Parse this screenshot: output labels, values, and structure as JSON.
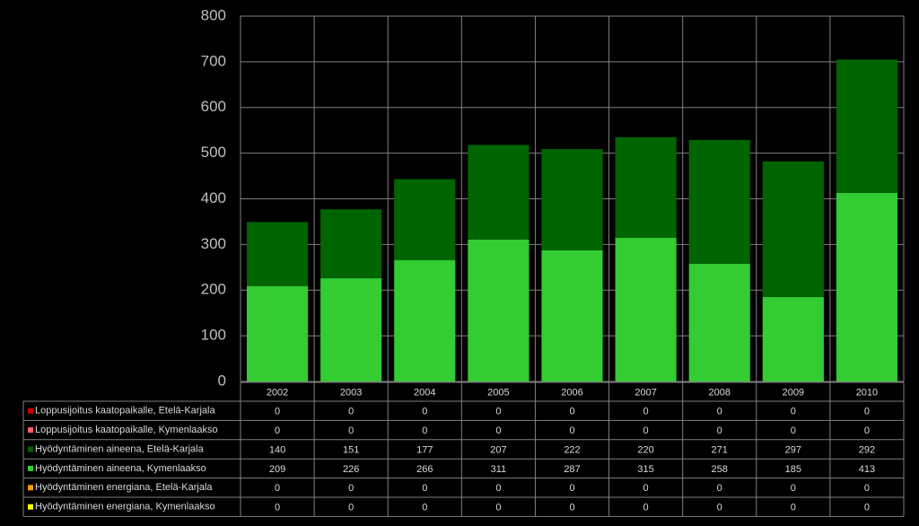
{
  "chart_data": {
    "type": "stacked_bar",
    "categories": [
      "2002",
      "2003",
      "2004",
      "2005",
      "2006",
      "2007",
      "2008",
      "2009",
      "2010"
    ],
    "series": [
      {
        "name": "Loppusijoitus kaatopaikalle, Etelä-Karjala",
        "color": "#cc0000",
        "values": [
          0,
          0,
          0,
          0,
          0,
          0,
          0,
          0,
          0
        ]
      },
      {
        "name": "Loppusijoitus kaatopaikalle, Kymenlaakso",
        "color": "#ff5f5f",
        "values": [
          0,
          0,
          0,
          0,
          0,
          0,
          0,
          0,
          0
        ]
      },
      {
        "name": "Hyödyntäminen aineena, Etelä-Karjala",
        "color": "#006400",
        "values": [
          140,
          151,
          177,
          207,
          222,
          220,
          271,
          297,
          292
        ]
      },
      {
        "name": "Hyödyntäminen aineena, Kymenlaakso",
        "color": "#33cc33",
        "values": [
          209,
          226,
          266,
          311,
          287,
          315,
          258,
          185,
          413
        ]
      },
      {
        "name": "Hyödyntäminen energiana, Etelä-Karjala",
        "color": "#ff9900",
        "values": [
          0,
          0,
          0,
          0,
          0,
          0,
          0,
          0,
          0
        ]
      },
      {
        "name": "Hyödyntäminen energiana, Kymenlaakso",
        "color": "#ffff00",
        "values": [
          0,
          0,
          0,
          0,
          0,
          0,
          0,
          0,
          0
        ]
      }
    ],
    "ylim": [
      0,
      800
    ],
    "yticks": [
      0,
      100,
      200,
      300,
      400,
      500,
      600,
      700,
      800
    ],
    "grid": true
  }
}
